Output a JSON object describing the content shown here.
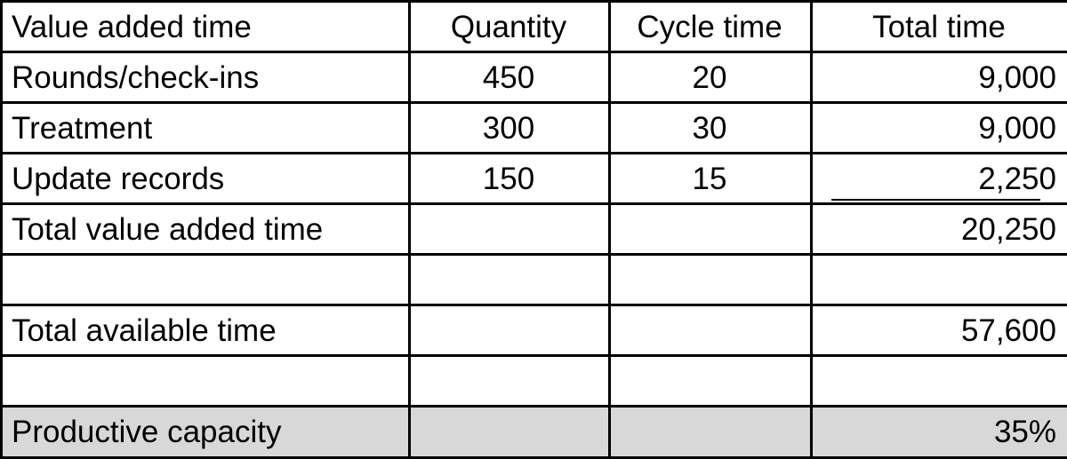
{
  "table": {
    "headers": [
      "Value added  time",
      "Quantity",
      "Cycle time",
      "Total time"
    ],
    "rows": [
      {
        "label": "Rounds/check-ins",
        "quantity": "450",
        "cycle_time": "20",
        "total_time": "9,000"
      },
      {
        "label": "Treatment",
        "quantity": "300",
        "cycle_time": "30",
        "total_time": "9,000"
      },
      {
        "label": "Update records",
        "quantity": "150",
        "cycle_time": "15",
        "total_time": "2,250"
      },
      {
        "label": "Total value added time",
        "quantity": "",
        "cycle_time": "",
        "total_time": "20,250"
      },
      {
        "label": "",
        "quantity": "",
        "cycle_time": "",
        "total_time": ""
      },
      {
        "label": "Total available time",
        "quantity": "",
        "cycle_time": "",
        "total_time": "57,600"
      },
      {
        "label": "",
        "quantity": "",
        "cycle_time": "",
        "total_time": ""
      },
      {
        "label": "Productive capacity",
        "quantity": "",
        "cycle_time": "",
        "total_time": "35%"
      }
    ]
  },
  "colors": {
    "grid_line": "#000000",
    "shaded_row": "#d8d8d8",
    "text": "#000000"
  }
}
